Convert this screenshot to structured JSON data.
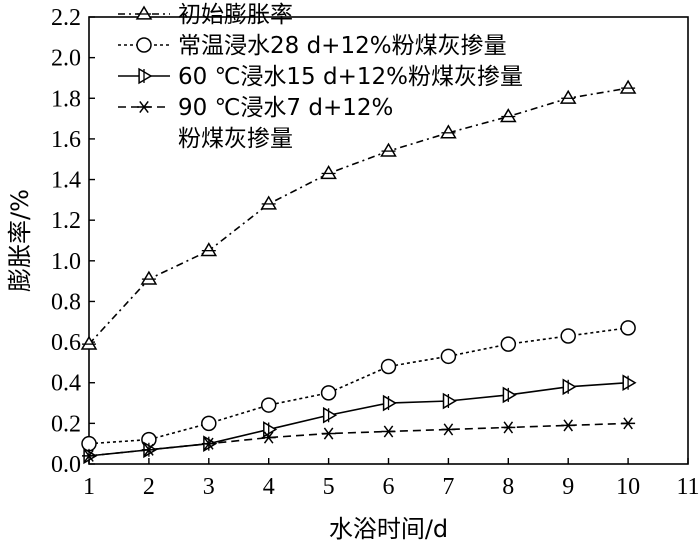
{
  "chart_data": {
    "type": "line",
    "xlabel": "水浴时间/d",
    "ylabel": "膨胀率/%",
    "xlim": [
      1,
      11
    ],
    "ylim": [
      0,
      2.2
    ],
    "x_ticks": [
      1,
      2,
      3,
      4,
      5,
      6,
      7,
      8,
      9,
      10,
      11
    ],
    "y_ticks": [
      "0.0",
      "0.2",
      "0.4",
      "0.6",
      "0.8",
      "1.0",
      "1.2",
      "1.4",
      "1.6",
      "1.8",
      "2.0",
      "2.2"
    ],
    "grid": false,
    "legend_position": "top-left",
    "series": [
      {
        "name": "初始膨胀率",
        "marker": "triangle-up",
        "line_style": "dash-dot",
        "x": [
          1,
          2,
          3,
          4,
          5,
          6,
          7,
          8,
          9,
          10
        ],
        "values": [
          0.59,
          0.91,
          1.05,
          1.28,
          1.43,
          1.54,
          1.63,
          1.71,
          1.8,
          1.85
        ]
      },
      {
        "name": "常温浸水28 d+12%粉煤灰掺量",
        "marker": "circle",
        "line_style": "dotted",
        "x": [
          1,
          2,
          3,
          4,
          5,
          6,
          7,
          8,
          9,
          10
        ],
        "values": [
          0.1,
          0.12,
          0.2,
          0.29,
          0.35,
          0.48,
          0.53,
          0.59,
          0.63,
          0.67
        ]
      },
      {
        "name": "60 ℃浸水15 d+12%粉煤灰掺量",
        "marker": "triangle-right",
        "line_style": "solid",
        "x": [
          1,
          2,
          3,
          4,
          5,
          6,
          7,
          8,
          9,
          10
        ],
        "values": [
          0.04,
          0.07,
          0.1,
          0.17,
          0.24,
          0.3,
          0.31,
          0.34,
          0.38,
          0.4
        ]
      },
      {
        "name": "90 ℃浸水7 d+12%粉煤灰掺量",
        "legend_lines": [
          "90 ℃浸水7 d+12%",
          "粉煤灰掺量"
        ],
        "marker": "asterisk",
        "line_style": "dash",
        "x": [
          1,
          2,
          3,
          4,
          5,
          6,
          7,
          8,
          9,
          10
        ],
        "values": [
          0.04,
          0.07,
          0.1,
          0.13,
          0.15,
          0.16,
          0.17,
          0.18,
          0.19,
          0.2
        ]
      }
    ],
    "colors": {
      "ink": "#000000",
      "background": "#ffffff"
    }
  }
}
